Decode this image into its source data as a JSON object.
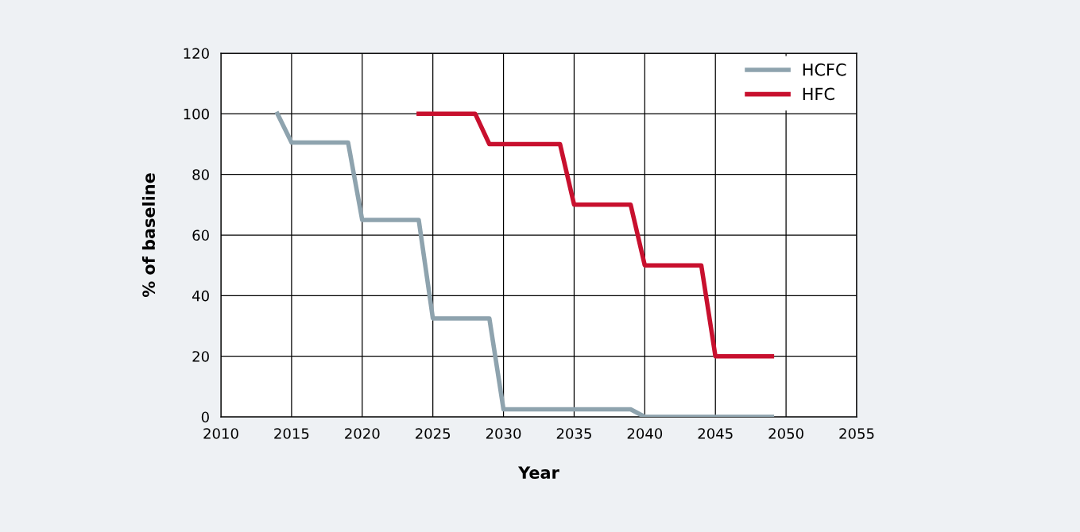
{
  "chart_data": {
    "type": "line",
    "xlabel": "Year",
    "ylabel": "% of baseline",
    "series": [
      {
        "name": "HCFC",
        "color": "#8ea3ae",
        "x": [
          2014,
          2015,
          2019,
          2020,
          2024,
          2025,
          2029,
          2030,
          2039,
          2040,
          2049
        ],
        "values": [
          100,
          90.5,
          90.5,
          65,
          65,
          32.5,
          32.5,
          2.5,
          2.5,
          0,
          0
        ]
      },
      {
        "name": "HFC",
        "color": "#c8102e",
        "x": [
          2024,
          2028,
          2029,
          2034,
          2035,
          2039,
          2040,
          2044,
          2045,
          2049
        ],
        "values": [
          100,
          100,
          90,
          90,
          70,
          70,
          50,
          50,
          20,
          20
        ]
      }
    ],
    "xlim": [
      2010,
      2055
    ],
    "xticks": [
      2010,
      2015,
      2020,
      2025,
      2030,
      2035,
      2040,
      2045,
      2050,
      2055
    ],
    "ylim": [
      0,
      120
    ],
    "yticks": [
      0,
      20,
      40,
      60,
      80,
      100,
      120
    ],
    "grid": true,
    "legend": "top right",
    "marker": "none",
    "line_style": "solid"
  }
}
